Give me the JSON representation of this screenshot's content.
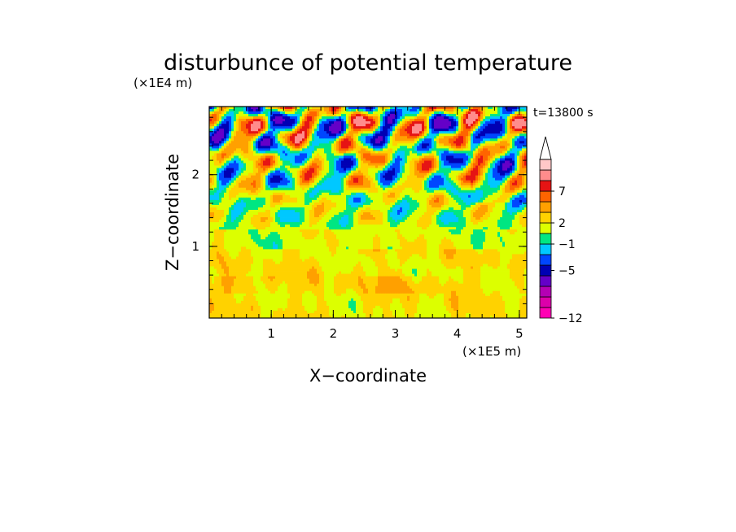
{
  "chart_data": {
    "type": "heatmap",
    "title": "disturbunce of potential temperature",
    "xlabel": "X−coordinate",
    "ylabel": "Z−coordinate",
    "x_scale_label": "(×1E5 m)",
    "y_scale_label": "(×1E4 m)",
    "time_label": "t=13800 s",
    "xlim": [
      0,
      5.12
    ],
    "ylim": [
      0,
      2.95
    ],
    "x_ticks": [
      {
        "value": 1,
        "label": "1"
      },
      {
        "value": 2,
        "label": "2"
      },
      {
        "value": 3,
        "label": "3"
      },
      {
        "value": 4,
        "label": "4"
      },
      {
        "value": 5,
        "label": "5"
      }
    ],
    "y_ticks": [
      {
        "value": 1,
        "label": "1"
      },
      {
        "value": 2,
        "label": "2"
      }
    ],
    "colorbar": {
      "colors": [
        "#ff00b4",
        "#dc00aa",
        "#b400b4",
        "#6400c8",
        "#0000b4",
        "#0046ff",
        "#00c8ff",
        "#00e682",
        "#dcff00",
        "#ffd200",
        "#ffa000",
        "#ff6400",
        "#e61414",
        "#ff8c8c",
        "#ffc8c8",
        "#ffffff"
      ],
      "tick_labels": [
        {
          "label": "−12",
          "at": 0
        },
        {
          "label": "−5",
          "at": 4.5
        },
        {
          "label": "−1",
          "at": 7
        },
        {
          "label": "2",
          "at": 9
        },
        {
          "label": "7",
          "at": 12
        },
        {
          "label": "",
          "at": 15
        }
      ]
    }
  }
}
